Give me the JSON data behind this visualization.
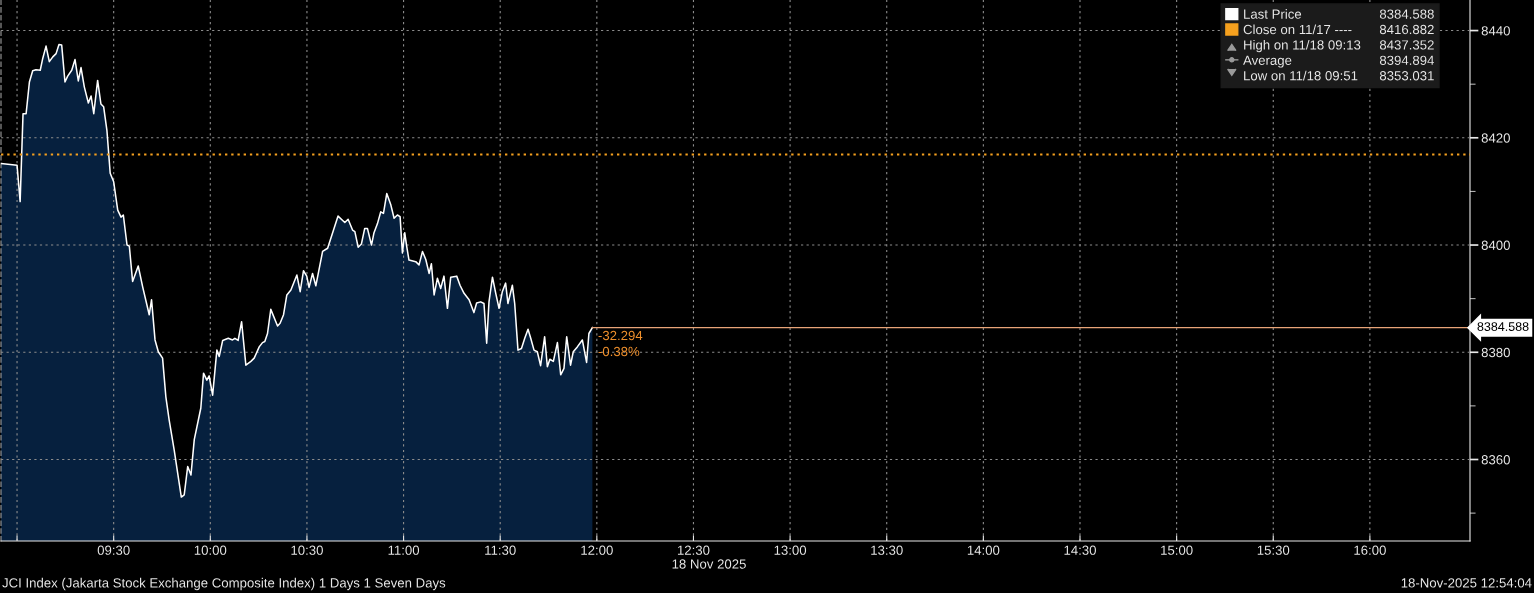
{
  "chart_data": {
    "type": "area",
    "x": [
      8.917,
      9.0,
      9.016,
      9.031,
      9.047,
      9.064,
      9.081,
      9.098,
      9.12,
      9.133,
      9.15,
      9.167,
      9.185,
      9.202,
      9.217,
      9.231,
      9.248,
      9.262,
      9.283,
      9.3,
      9.317,
      9.331,
      9.348,
      9.369,
      9.383,
      9.397,
      9.417,
      9.434,
      9.448,
      9.465,
      9.482,
      9.5,
      9.521,
      9.538,
      9.55,
      9.569,
      9.581,
      9.598,
      9.627,
      9.65,
      9.684,
      9.696,
      9.714,
      9.731,
      9.753,
      9.77,
      9.787,
      9.813,
      9.85,
      9.865,
      9.883,
      9.9,
      9.917,
      9.951,
      9.965,
      9.982,
      9.994,
      10.012,
      10.034,
      10.046,
      10.064,
      10.093,
      10.115,
      10.127,
      10.144,
      10.162,
      10.184,
      10.21,
      10.227,
      10.253,
      10.27,
      10.282,
      10.296,
      10.313,
      10.348,
      10.361,
      10.379,
      10.396,
      10.417,
      10.448,
      10.465,
      10.482,
      10.499,
      10.511,
      10.529,
      10.546,
      10.581,
      10.607,
      10.661,
      10.696,
      10.713,
      10.736,
      10.748,
      10.765,
      10.782,
      10.799,
      10.813,
      10.834,
      10.847,
      10.865,
      10.882,
      10.896,
      10.913,
      10.934,
      10.951,
      10.968,
      10.982,
      10.994,
      11.006,
      11.016,
      11.028,
      11.063,
      11.08,
      11.098,
      11.115,
      11.132,
      11.144,
      11.158,
      11.175,
      11.192,
      11.209,
      11.227,
      11.244,
      11.275,
      11.292,
      11.313,
      11.339,
      11.364,
      11.378,
      11.399,
      11.416,
      11.43,
      11.442,
      11.46,
      11.477,
      11.494,
      11.511,
      11.528,
      11.54,
      11.563,
      11.575,
      11.592,
      11.61,
      11.627,
      11.644,
      11.658,
      11.675,
      11.692,
      11.709,
      11.73,
      11.744,
      11.757,
      11.775,
      11.796,
      11.813,
      11.83,
      11.844,
      11.864,
      11.878,
      11.899,
      11.925,
      11.947,
      11.959,
      11.977
    ],
    "series": [
      {
        "name": "Last Price",
        "color": "#ffffff",
        "values": [
          8415.2,
          8414.9,
          8408.1,
          8424.5,
          8424.5,
          8430.4,
          8432.5,
          8432.7,
          8432.6,
          8434.8,
          8437.1,
          8434.2,
          8435.1,
          8435.7,
          8437.4,
          8437.3,
          8430.4,
          8431.5,
          8432.6,
          8434.6,
          8430.6,
          8433.1,
          8429.5,
          8426.5,
          8427.8,
          8424.5,
          8430.7,
          8426.3,
          8425.8,
          8421.4,
          8413.4,
          8411.8,
          8406.5,
          8405.2,
          8405.6,
          8400.0,
          8399.8,
          8393.2,
          8396.1,
          8392.2,
          8387.0,
          8389.8,
          8382.3,
          8380.1,
          8378.9,
          8371.7,
          8367.4,
          8361.8,
          8353.0,
          8353.4,
          8358.7,
          8357.1,
          8363.7,
          8369.6,
          8376.1,
          8374.8,
          8375.6,
          8372.0,
          8380.4,
          8379.2,
          8382.2,
          8382.6,
          8382.3,
          8382.6,
          8382.2,
          8385.7,
          8377.6,
          8378.3,
          8378.9,
          8381.0,
          8381.8,
          8382.0,
          8383.5,
          8388.0,
          8384.9,
          8385.4,
          8387.0,
          8390.7,
          8391.6,
          8394.4,
          8391.3,
          8395.2,
          8394.2,
          8392.1,
          8394.7,
          8392.4,
          8398.8,
          8399.4,
          8405.4,
          8404.2,
          8404.8,
          8402.8,
          8402.5,
          8399.6,
          8400.2,
          8403.1,
          8403.1,
          8400.0,
          8402.3,
          8404.0,
          8406.2,
          8405.9,
          8409.6,
          8407.5,
          8405.0,
          8405.6,
          8405.3,
          8398.5,
          8402.3,
          8399.8,
          8397.2,
          8396.9,
          8396.3,
          8398.8,
          8397.3,
          8394.7,
          8396.5,
          8390.7,
          8393.8,
          8391.9,
          8394.2,
          8388.2,
          8394.0,
          8394.2,
          8392.5,
          8391.0,
          8389.8,
          8387.4,
          8389.2,
          8389.4,
          8389.1,
          8381.7,
          8389.4,
          8394.0,
          8391.0,
          8388.2,
          8391.3,
          8392.9,
          8389.1,
          8392.5,
          8389.1,
          8380.4,
          8380.7,
          8382.6,
          8384.3,
          8382.6,
          8380.4,
          8380.1,
          8377.5,
          8382.9,
          8377.3,
          8378.7,
          8378.3,
          8381.8,
          8375.8,
          8377.0,
          8382.9,
          8377.6,
          8380.1,
          8381.0,
          8382.3,
          8378.1,
          8383.5,
          8384.6
        ]
      }
    ],
    "xlim": [
      8.917,
      16.518
    ],
    "xticks": [
      {
        "value": 9,
        "label": null
      },
      {
        "value": 9.5,
        "label": "09:30"
      },
      {
        "value": 10,
        "label": "10:00"
      },
      {
        "value": 10.5,
        "label": "10:30"
      },
      {
        "value": 11,
        "label": "11:00"
      },
      {
        "value": 11.5,
        "label": "11:30"
      },
      {
        "value": 12,
        "label": "12:00"
      },
      {
        "value": 12.5,
        "label": "12:30"
      },
      {
        "value": 13,
        "label": "13:00"
      },
      {
        "value": 13.5,
        "label": "13:30"
      },
      {
        "value": 14,
        "label": "14:00"
      },
      {
        "value": 14.5,
        "label": "14:30"
      },
      {
        "value": 15,
        "label": "15:00"
      },
      {
        "value": 15.5,
        "label": "15:30"
      },
      {
        "value": 16,
        "label": "16:00"
      }
    ],
    "ylim": [
      8344.8,
      8445.7
    ],
    "yticks": [
      {
        "value": 8350,
        "label": null
      },
      8360,
      {
        "value": 8370,
        "label": null
      },
      8380,
      {
        "value": 8390,
        "label": null
      },
      8400,
      {
        "value": 8410,
        "label": null
      },
      8420,
      {
        "value": 8430,
        "label": null
      },
      8440
    ],
    "xlabel": "18 Nov 2025",
    "grid": true,
    "legend": "top right",
    "ref_lines": [
      {
        "axis": "y",
        "value": 8416.882,
        "label": "Close on 11/17 ----",
        "color": "#f5a01e",
        "line_style": "dotted"
      },
      {
        "axis": "y",
        "value": 8384.588,
        "label": "8384.588",
        "color": "#e8a478",
        "line_style": "solid"
      }
    ],
    "annotations": [
      "8384.588",
      "8416.882",
      "High on 11/18 09:13",
      "8437.352",
      "Average",
      "8394.894",
      "Low on 11/18 09:51",
      "8353.031",
      "-32.294",
      "-0.38%",
      "JCI Index (Jakarta Stock Exchange Composite Index) 1 Days 1 Seven Days",
      "18-Nov-2025 12:54:04"
    ]
  }
}
